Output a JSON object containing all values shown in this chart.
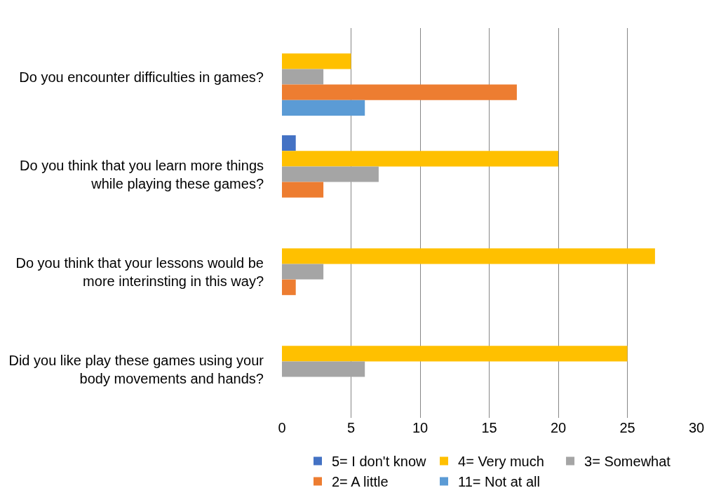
{
  "chart_data": {
    "type": "bar",
    "orientation": "horizontal",
    "categories": [
      "Do you encounter difficulties in games?",
      "Do you think that you learn more things while playing these games?",
      "Do you think that your lessons would be more interinsting in this way?",
      "Did you like play these games using your body movements and hands?"
    ],
    "series": [
      {
        "name": "5= I don't know",
        "color": "#4472c4",
        "values": [
          0,
          1,
          0,
          0
        ]
      },
      {
        "name": "4= Very much",
        "color": "#ffc000",
        "values": [
          5,
          20,
          27,
          25
        ]
      },
      {
        "name": "3= Somewhat",
        "color": "#a5a5a5",
        "values": [
          3,
          7,
          3,
          6
        ]
      },
      {
        "name": "2= A little",
        "color": "#ed7d31",
        "values": [
          17,
          3,
          1,
          0
        ]
      },
      {
        "name": "11= Not at all",
        "color": "#5b9bd5",
        "values": [
          6,
          0,
          0,
          0
        ]
      }
    ],
    "xlim": [
      0,
      30
    ],
    "xticks": [
      0,
      5,
      10,
      15,
      20,
      25,
      30
    ],
    "grid": "x",
    "legend": "bottom"
  }
}
